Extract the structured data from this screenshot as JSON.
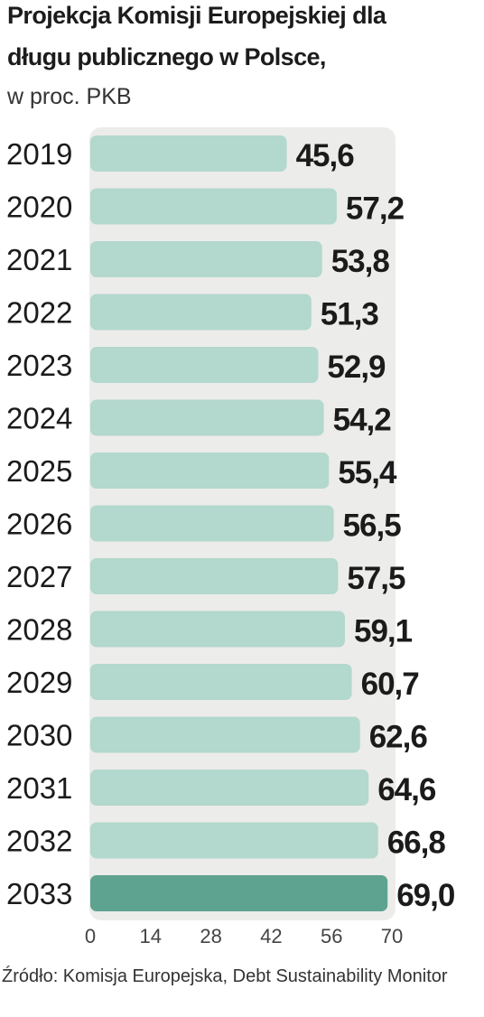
{
  "chart_data": {
    "type": "bar",
    "orientation": "horizontal",
    "title_lines": [
      "Projekcja Komisji Europejskiej dla",
      "długu publicznego w Polsce,"
    ],
    "subtitle": "w proc. PKB",
    "categories": [
      "2019",
      "2020",
      "2021",
      "2022",
      "2023",
      "2024",
      "2025",
      "2026",
      "2027",
      "2028",
      "2029",
      "2030",
      "2031",
      "2032",
      "2033"
    ],
    "values": [
      45.6,
      57.2,
      53.8,
      51.3,
      52.9,
      54.2,
      55.4,
      56.5,
      57.5,
      59.1,
      60.7,
      62.6,
      64.6,
      66.8,
      69.0
    ],
    "value_labels": [
      "45,6",
      "57,2",
      "53,8",
      "51,3",
      "52,9",
      "54,2",
      "55,4",
      "56,5",
      "57,5",
      "59,1",
      "60,7",
      "62,6",
      "64,6",
      "66,8",
      "69,0"
    ],
    "xticks": [
      0,
      14,
      28,
      42,
      56,
      70
    ],
    "xlim": [
      0,
      70
    ],
    "highlight_category": "2033",
    "grid": false,
    "colors": {
      "bar": "#b3d8cd",
      "bar_highlight": "#5ea38f",
      "background_panel": "#ececea",
      "text": "#1b1b1b"
    }
  },
  "source": "Źródło:  Komisja Europejska, Debt Sustainability Monitor"
}
